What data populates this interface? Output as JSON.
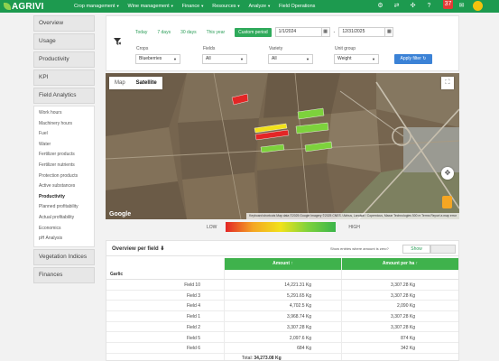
{
  "app": {
    "brand": "AGRIVI",
    "nav": [
      {
        "label": "Crop management"
      },
      {
        "label": "Wine management"
      },
      {
        "label": "Finance"
      },
      {
        "label": "Resources"
      },
      {
        "label": "Analyze"
      },
      {
        "label": "Field Operations"
      }
    ],
    "icons": [
      "gear-icon",
      "swap-icon",
      "network-icon",
      "help-icon",
      "bell-icon",
      "chat-icon",
      "avatar-icon"
    ],
    "notification_count": "37"
  },
  "sidebar": {
    "items_top": [
      {
        "label": "Overview"
      },
      {
        "label": "Usage"
      },
      {
        "label": "Productivity"
      },
      {
        "label": "KPI"
      },
      {
        "label": "Field Analytics"
      }
    ],
    "subitems": [
      {
        "label": "Work hours"
      },
      {
        "label": "Machinery hours"
      },
      {
        "label": "Fuel"
      },
      {
        "label": "Water"
      },
      {
        "label": "Fertilizer products"
      },
      {
        "label": "Fertilizer nutrients"
      },
      {
        "label": "Protection products"
      },
      {
        "label": "Active substances"
      },
      {
        "label": "Productivity"
      },
      {
        "label": "Planned profitability"
      },
      {
        "label": "Actual profitability"
      },
      {
        "label": "Economics"
      },
      {
        "label": "pH Analysis"
      }
    ],
    "active_subitem": "Productivity",
    "items_bottom": [
      {
        "label": "Vegetation Indices"
      },
      {
        "label": "Finances"
      }
    ]
  },
  "filters": {
    "quick_dates": [
      {
        "label": "Today"
      },
      {
        "label": "7 days"
      },
      {
        "label": "30 days"
      },
      {
        "label": "This year"
      }
    ],
    "custom_period_label": "Custom period",
    "date_from": "1/1/2024",
    "date_separator": "-",
    "date_to": "12/31/2025",
    "crops": {
      "label": "Crops",
      "value": "Blueberries"
    },
    "fields": {
      "label": "Fields",
      "value": "All"
    },
    "variety": {
      "label": "Variety",
      "value": "All"
    },
    "unit_group": {
      "label": "Unit group",
      "value": "Weight"
    },
    "apply_label": "Apply filter"
  },
  "map": {
    "type_map": "Map",
    "type_satellite": "Satellite",
    "selected_type": "Satellite",
    "google_label": "Google",
    "attribution": "Keyboard shortcuts   Map data ©2025 Google Imagery ©2025 CNES / Airbus, Landsat / Copernicus, Maxar Technologies   500 m   Terms   Report a map error"
  },
  "legend": {
    "low": "LOW",
    "high": "HIGH"
  },
  "overview": {
    "title": "Overview per field",
    "show_zero_label": "Show entries where amount is zero?",
    "show_button": "Show",
    "columns": {
      "amount": "Amount",
      "amount_per_ha": "Amount per ha"
    },
    "group": "Garlic",
    "rows": [
      {
        "field": "Field 10",
        "amount": "14,221.31 Kg",
        "per_ha": "3,307.28 Kg"
      },
      {
        "field": "Field 3",
        "amount": "5,291.65 Kg",
        "per_ha": "3,307.28 Kg"
      },
      {
        "field": "Field 4",
        "amount": "4,702.5 Kg",
        "per_ha": "2,090 Kg"
      },
      {
        "field": "Field 1",
        "amount": "3,968.74 Kg",
        "per_ha": "3,307.28 Kg"
      },
      {
        "field": "Field 2",
        "amount": "3,307.28 Kg",
        "per_ha": "3,307.28 Kg"
      },
      {
        "field": "Field 5",
        "amount": "2,097.6 Kg",
        "per_ha": "874 Kg"
      },
      {
        "field": "Field 6",
        "amount": "684 Kg",
        "per_ha": "342 Kg"
      }
    ],
    "total_label": "Total:",
    "total_value": "34,273.08 Kg"
  },
  "colors": {
    "brand_green": "#1d9a4f",
    "table_header": "#3fb24c",
    "apply_blue": "#3b82d6",
    "field_red": "#e32626",
    "field_yellow": "#f1e21a",
    "field_green": "#7dd23c"
  }
}
